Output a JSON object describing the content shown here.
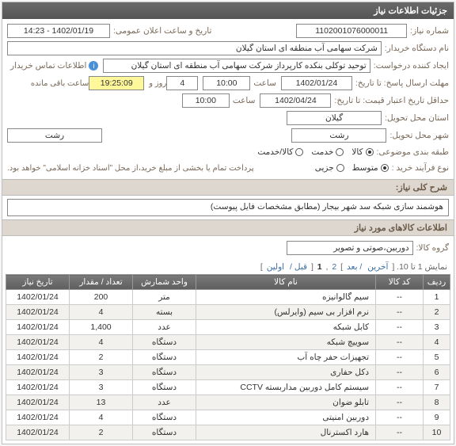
{
  "panel_title": "جزئیات اطلاعات نیاز",
  "labels": {
    "need_no": "شماره نیاز:",
    "ann_datetime": "تاریخ و ساعت اعلان عمومی:",
    "buyer_org": "نام دستگاه خریدار:",
    "creator": "ایجاد کننده درخواست:",
    "contact": "اطلاعات تماس خریدار",
    "reply_deadline": "مهلت ارسال پاسخ: تا تاریخ:",
    "hour": "ساعت",
    "day_and": "روز و",
    "remain": "ساعت باقی مانده",
    "credit_deadline": "حداقل تاریخ اعتبار قیمت: تا تاریخ:",
    "province": "استان محل تحویل:",
    "city": "شهر محل تحویل:",
    "category": "طبقه بندی موضوعی:",
    "process": "نوع فرآیند خرید :",
    "payment_note": "پرداخت تمام یا بخشی از مبلغ خرید،از محل \"اسناد خزانه اسلامی\" خواهد بود.",
    "need_desc": "شرح کلی نیاز:",
    "items_header": "اطلاعات کالاهای مورد نیاز",
    "item_group": "گروه کالا:"
  },
  "values": {
    "need_no": "1102001076000011",
    "ann_date": "1402/01/19 - 14:23",
    "buyer_org": "شرکت سهامی آب منطقه ای استان گیلان",
    "creator": "توحید توکلی بنکده کارپرداز شرکت سهامی آب منطقه ای استان گیلان",
    "reply_date": "1402/01/24",
    "reply_time": "10:00",
    "days": "4",
    "remain_time": "19:25:09",
    "credit_date": "1402/04/24",
    "credit_time": "10:00",
    "province": "گیلان",
    "city": "رشت",
    "city2": "رشت",
    "desc": "هوشمند سازی شبکه سد شهر بیجار (مطابق مشخصات فایل پیوست)",
    "item_group": "دوربین،صوتی و تصویر"
  },
  "category_opts": [
    {
      "label": "کالا",
      "selected": true
    },
    {
      "label": "خدمت",
      "selected": false
    },
    {
      "label": "کالا/خدمت",
      "selected": false
    }
  ],
  "process_opts": [
    {
      "label": "متوسط",
      "selected": true
    },
    {
      "label": "جزیی",
      "selected": false
    }
  ],
  "pager": {
    "text_prefix": "نمایش 1 تا 10. [",
    "last": "آخرین",
    "next": "/ بعد",
    "pages": [
      "2",
      "1"
    ],
    "prev": "قبل /",
    "first": "اولین",
    "text_suffix": "]"
  },
  "columns": [
    "ردیف",
    "کد کالا",
    "نام کالا",
    "واحد شمارش",
    "تعداد / مقدار",
    "تاریخ نیاز"
  ],
  "rows": [
    {
      "idx": "1",
      "code": "--",
      "name": "سیم گالوانیزه",
      "unit": "متر",
      "qty": "200",
      "date": "1402/01/24"
    },
    {
      "idx": "2",
      "code": "--",
      "name": "نرم افزار بی سیم (وایرلس)",
      "unit": "بسته",
      "qty": "4",
      "date": "1402/01/24"
    },
    {
      "idx": "3",
      "code": "--",
      "name": "کابل شبکه",
      "unit": "عدد",
      "qty": "1,400",
      "date": "1402/01/24"
    },
    {
      "idx": "4",
      "code": "--",
      "name": "سوییچ شبکه",
      "unit": "دستگاه",
      "qty": "4",
      "date": "1402/01/24"
    },
    {
      "idx": "5",
      "code": "--",
      "name": "تجهیزات حفر چاه آب",
      "unit": "دستگاه",
      "qty": "2",
      "date": "1402/01/24"
    },
    {
      "idx": "6",
      "code": "--",
      "name": "دکل حفاری",
      "unit": "دستگاه",
      "qty": "3",
      "date": "1402/01/24"
    },
    {
      "idx": "7",
      "code": "--",
      "name": "سیستم کامل دوربین مداربسته CCTV",
      "unit": "دستگاه",
      "qty": "3",
      "date": "1402/01/24"
    },
    {
      "idx": "8",
      "code": "--",
      "name": "تابلو ضوان",
      "unit": "عدد",
      "qty": "13",
      "date": "1402/01/24"
    },
    {
      "idx": "9",
      "code": "--",
      "name": "دوربین امنیتی",
      "unit": "دستگاه",
      "qty": "4",
      "date": "1402/01/24"
    },
    {
      "idx": "10",
      "code": "--",
      "name": "هارد اکسترنال",
      "unit": "دستگاه",
      "qty": "2",
      "date": "1402/01/24"
    }
  ]
}
